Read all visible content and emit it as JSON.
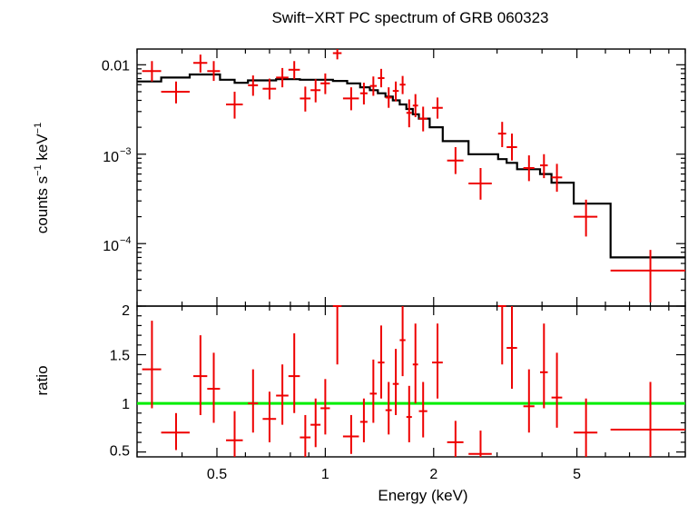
{
  "title": "Swift−XRT PC spectrum of GRB 060323",
  "colors": {
    "data": "#ee0000",
    "model": "#000000",
    "unity": "#00ee00",
    "axes": "#000000"
  },
  "chart_data": [
    {
      "type": "scatter",
      "panel": "spectrum",
      "title": "Swift−XRT PC spectrum of GRB 060323",
      "ylabel_parts": {
        "base": "counts s",
        "exp1": "−1",
        "mid": " keV",
        "exp2": "−1"
      },
      "yscale": "log",
      "xscale": "log",
      "xlim": [
        0.3,
        10
      ],
      "ylim": [
        2e-05,
        0.015
      ],
      "y_ticks": [
        {
          "value": 0.01,
          "label": "0.01"
        },
        {
          "value": 0.001,
          "base": "10",
          "exp": "−3"
        },
        {
          "value": 0.0001,
          "base": "10",
          "exp": "−4"
        }
      ],
      "series": [
        {
          "type": "errorbars",
          "points": [
            {
              "x": 0.33,
              "xlo": 0.31,
              "xhi": 0.35,
              "y": 0.0085,
              "ylo": 0.0065,
              "yhi": 0.011
            },
            {
              "x": 0.385,
              "xlo": 0.35,
              "xhi": 0.42,
              "y": 0.005,
              "ylo": 0.0037,
              "yhi": 0.0065
            },
            {
              "x": 0.45,
              "xlo": 0.43,
              "xhi": 0.47,
              "y": 0.0105,
              "ylo": 0.0082,
              "yhi": 0.013
            },
            {
              "x": 0.49,
              "xlo": 0.47,
              "xhi": 0.51,
              "y": 0.0085,
              "ylo": 0.0066,
              "yhi": 0.011
            },
            {
              "x": 0.56,
              "xlo": 0.53,
              "xhi": 0.59,
              "y": 0.0036,
              "ylo": 0.0025,
              "yhi": 0.005
            },
            {
              "x": 0.63,
              "xlo": 0.61,
              "xhi": 0.65,
              "y": 0.0059,
              "ylo": 0.0045,
              "yhi": 0.0076
            },
            {
              "x": 0.7,
              "xlo": 0.67,
              "xhi": 0.73,
              "y": 0.0054,
              "ylo": 0.0041,
              "yhi": 0.007
            },
            {
              "x": 0.76,
              "xlo": 0.73,
              "xhi": 0.79,
              "y": 0.0072,
              "ylo": 0.0056,
              "yhi": 0.0092
            },
            {
              "x": 0.82,
              "xlo": 0.79,
              "xhi": 0.85,
              "y": 0.0088,
              "ylo": 0.0069,
              "yhi": 0.011
            },
            {
              "x": 0.88,
              "xlo": 0.85,
              "xhi": 0.91,
              "y": 0.0042,
              "ylo": 0.003,
              "yhi": 0.0057
            },
            {
              "x": 0.94,
              "xlo": 0.91,
              "xhi": 0.97,
              "y": 0.0052,
              "ylo": 0.0038,
              "yhi": 0.0069
            },
            {
              "x": 1.0,
              "xlo": 0.97,
              "xhi": 1.03,
              "y": 0.0062,
              "ylo": 0.0047,
              "yhi": 0.008
            },
            {
              "x": 1.08,
              "xlo": 1.05,
              "xhi": 1.11,
              "y": 0.0135,
              "ylo": 0.0115,
              "yhi": 0.016
            },
            {
              "x": 1.18,
              "xlo": 1.12,
              "xhi": 1.24,
              "y": 0.0042,
              "ylo": 0.0031,
              "yhi": 0.0056
            },
            {
              "x": 1.28,
              "xlo": 1.25,
              "xhi": 1.31,
              "y": 0.0048,
              "ylo": 0.0036,
              "yhi": 0.0063
            },
            {
              "x": 1.36,
              "xlo": 1.33,
              "xhi": 1.39,
              "y": 0.0058,
              "ylo": 0.0045,
              "yhi": 0.0074
            },
            {
              "x": 1.43,
              "xlo": 1.4,
              "xhi": 1.46,
              "y": 0.0071,
              "ylo": 0.0056,
              "yhi": 0.009
            },
            {
              "x": 1.5,
              "xlo": 1.47,
              "xhi": 1.53,
              "y": 0.0043,
              "ylo": 0.0033,
              "yhi": 0.0056
            },
            {
              "x": 1.57,
              "xlo": 1.54,
              "xhi": 1.6,
              "y": 0.0051,
              "ylo": 0.0039,
              "yhi": 0.0065
            },
            {
              "x": 1.64,
              "xlo": 1.61,
              "xhi": 1.67,
              "y": 0.006,
              "ylo": 0.0047,
              "yhi": 0.0075
            },
            {
              "x": 1.71,
              "xlo": 1.68,
              "xhi": 1.74,
              "y": 0.0029,
              "ylo": 0.002,
              "yhi": 0.0041
            },
            {
              "x": 1.78,
              "xlo": 1.75,
              "xhi": 1.81,
              "y": 0.0035,
              "ylo": 0.0026,
              "yhi": 0.0047
            },
            {
              "x": 1.87,
              "xlo": 1.82,
              "xhi": 1.92,
              "y": 0.0025,
              "ylo": 0.0018,
              "yhi": 0.0034
            },
            {
              "x": 2.05,
              "xlo": 1.98,
              "xhi": 2.12,
              "y": 0.0033,
              "ylo": 0.0025,
              "yhi": 0.0043
            },
            {
              "x": 2.3,
              "xlo": 2.18,
              "xhi": 2.42,
              "y": 0.00085,
              "ylo": 0.0006,
              "yhi": 0.0012
            },
            {
              "x": 2.7,
              "xlo": 2.5,
              "xhi": 2.9,
              "y": 0.00047,
              "ylo": 0.00031,
              "yhi": 0.0007
            },
            {
              "x": 3.1,
              "xlo": 3.02,
              "xhi": 3.18,
              "y": 0.0017,
              "ylo": 0.0012,
              "yhi": 0.0023
            },
            {
              "x": 3.3,
              "xlo": 3.19,
              "xhi": 3.41,
              "y": 0.0012,
              "ylo": 0.00085,
              "yhi": 0.0017
            },
            {
              "x": 3.68,
              "xlo": 3.55,
              "xhi": 3.81,
              "y": 0.0007,
              "ylo": 0.0005,
              "yhi": 0.00097
            },
            {
              "x": 4.05,
              "xlo": 3.95,
              "xhi": 4.15,
              "y": 0.00075,
              "ylo": 0.00054,
              "yhi": 0.001
            },
            {
              "x": 4.4,
              "xlo": 4.25,
              "xhi": 4.55,
              "y": 0.00055,
              "ylo": 0.00038,
              "yhi": 0.00078
            },
            {
              "x": 5.3,
              "xlo": 4.9,
              "xhi": 5.7,
              "y": 0.0002,
              "ylo": 0.00012,
              "yhi": 0.00031
            },
            {
              "x": 8.0,
              "xlo": 6.2,
              "xhi": 10.0,
              "y": 5e-05,
              "ylo": 2.2e-05,
              "yhi": 8.5e-05
            }
          ]
        },
        {
          "type": "model-step",
          "steps": [
            {
              "xlo": 0.3,
              "xhi": 0.35,
              "y": 0.0065
            },
            {
              "xlo": 0.35,
              "xhi": 0.42,
              "y": 0.0072
            },
            {
              "xlo": 0.42,
              "xhi": 0.51,
              "y": 0.0078
            },
            {
              "xlo": 0.51,
              "xhi": 0.56,
              "y": 0.0068
            },
            {
              "xlo": 0.56,
              "xhi": 0.61,
              "y": 0.0063
            },
            {
              "xlo": 0.61,
              "xhi": 0.73,
              "y": 0.0067
            },
            {
              "xlo": 0.73,
              "xhi": 0.85,
              "y": 0.0069
            },
            {
              "xlo": 0.85,
              "xhi": 1.05,
              "y": 0.0068
            },
            {
              "xlo": 1.05,
              "xhi": 1.15,
              "y": 0.0066
            },
            {
              "xlo": 1.15,
              "xhi": 1.25,
              "y": 0.0062
            },
            {
              "xlo": 1.25,
              "xhi": 1.33,
              "y": 0.0056
            },
            {
              "xlo": 1.33,
              "xhi": 1.4,
              "y": 0.0052
            },
            {
              "xlo": 1.4,
              "xhi": 1.47,
              "y": 0.0048
            },
            {
              "xlo": 1.47,
              "xhi": 1.54,
              "y": 0.0044
            },
            {
              "xlo": 1.54,
              "xhi": 1.61,
              "y": 0.004
            },
            {
              "xlo": 1.61,
              "xhi": 1.68,
              "y": 0.0036
            },
            {
              "xlo": 1.68,
              "xhi": 1.75,
              "y": 0.0032
            },
            {
              "xlo": 1.75,
              "xhi": 1.82,
              "y": 0.0028
            },
            {
              "xlo": 1.82,
              "xhi": 1.95,
              "y": 0.0025
            },
            {
              "xlo": 1.95,
              "xhi": 2.12,
              "y": 0.002
            },
            {
              "xlo": 2.12,
              "xhi": 2.5,
              "y": 0.0014
            },
            {
              "xlo": 2.5,
              "xhi": 3.02,
              "y": 0.001
            },
            {
              "xlo": 3.02,
              "xhi": 3.19,
              "y": 0.00088
            },
            {
              "xlo": 3.19,
              "xhi": 3.41,
              "y": 0.0008
            },
            {
              "xlo": 3.41,
              "xhi": 3.95,
              "y": 0.00068
            },
            {
              "xlo": 3.95,
              "xhi": 4.25,
              "y": 0.0006
            },
            {
              "xlo": 4.25,
              "xhi": 4.9,
              "y": 0.00048
            },
            {
              "xlo": 4.9,
              "xhi": 6.2,
              "y": 0.00028
            },
            {
              "xlo": 6.2,
              "xhi": 10.0,
              "y": 7e-05
            }
          ]
        }
      ]
    },
    {
      "type": "scatter",
      "panel": "ratio",
      "xlabel": "Energy (keV)",
      "ylabel": "ratio",
      "xscale": "log",
      "xlim": [
        0.3,
        10
      ],
      "ylim": [
        0.45,
        2
      ],
      "x_ticks": [
        {
          "value": 0.5,
          "label": "0.5"
        },
        {
          "value": 1,
          "label": "1"
        },
        {
          "value": 2,
          "label": "2"
        },
        {
          "value": 5,
          "label": "5"
        }
      ],
      "y_ticks": [
        {
          "value": 0.5,
          "label": "0.5"
        },
        {
          "value": 1,
          "label": "1"
        },
        {
          "value": 1.5,
          "label": "1.5"
        },
        {
          "value": 2,
          "label": "2"
        }
      ],
      "reference_line": 1,
      "series": [
        {
          "type": "errorbars",
          "points": [
            {
              "x": 0.33,
              "xlo": 0.31,
              "xhi": 0.35,
              "y": 1.35,
              "ylo": 0.95,
              "yhi": 1.85
            },
            {
              "x": 0.385,
              "xlo": 0.35,
              "xhi": 0.42,
              "y": 0.7,
              "ylo": 0.52,
              "yhi": 0.9
            },
            {
              "x": 0.45,
              "xlo": 0.43,
              "xhi": 0.47,
              "y": 1.28,
              "ylo": 0.88,
              "yhi": 1.7
            },
            {
              "x": 0.49,
              "xlo": 0.47,
              "xhi": 0.51,
              "y": 1.15,
              "ylo": 0.8,
              "yhi": 1.52
            },
            {
              "x": 0.56,
              "xlo": 0.53,
              "xhi": 0.59,
              "y": 0.62,
              "ylo": 0.45,
              "yhi": 0.92
            },
            {
              "x": 0.63,
              "xlo": 0.61,
              "xhi": 0.65,
              "y": 1.0,
              "ylo": 0.7,
              "yhi": 1.35
            },
            {
              "x": 0.7,
              "xlo": 0.67,
              "xhi": 0.73,
              "y": 0.84,
              "ylo": 0.6,
              "yhi": 1.12
            },
            {
              "x": 0.76,
              "xlo": 0.73,
              "xhi": 0.79,
              "y": 1.08,
              "ylo": 0.78,
              "yhi": 1.4
            },
            {
              "x": 0.82,
              "xlo": 0.79,
              "xhi": 0.85,
              "y": 1.28,
              "ylo": 0.9,
              "yhi": 1.72
            },
            {
              "x": 0.88,
              "xlo": 0.85,
              "xhi": 0.91,
              "y": 0.65,
              "ylo": 0.45,
              "yhi": 0.88
            },
            {
              "x": 0.94,
              "xlo": 0.91,
              "xhi": 0.97,
              "y": 0.78,
              "ylo": 0.55,
              "yhi": 1.05
            },
            {
              "x": 1.0,
              "xlo": 0.97,
              "xhi": 1.03,
              "y": 0.95,
              "ylo": 0.68,
              "yhi": 1.25
            },
            {
              "x": 1.08,
              "xlo": 1.05,
              "xhi": 1.11,
              "y": 2.0,
              "ylo": 1.4,
              "yhi": 2.0
            },
            {
              "x": 1.18,
              "xlo": 1.12,
              "xhi": 1.24,
              "y": 0.66,
              "ylo": 0.48,
              "yhi": 0.88
            },
            {
              "x": 1.28,
              "xlo": 1.25,
              "xhi": 1.31,
              "y": 0.81,
              "ylo": 0.6,
              "yhi": 1.05
            },
            {
              "x": 1.36,
              "xlo": 1.33,
              "xhi": 1.39,
              "y": 1.1,
              "ylo": 0.8,
              "yhi": 1.45
            },
            {
              "x": 1.43,
              "xlo": 1.4,
              "xhi": 1.46,
              "y": 1.42,
              "ylo": 1.05,
              "yhi": 1.8
            },
            {
              "x": 1.5,
              "xlo": 1.47,
              "xhi": 1.53,
              "y": 0.93,
              "ylo": 0.68,
              "yhi": 1.22
            },
            {
              "x": 1.57,
              "xlo": 1.54,
              "xhi": 1.6,
              "y": 1.2,
              "ylo": 0.88,
              "yhi": 1.56
            },
            {
              "x": 1.64,
              "xlo": 1.61,
              "xhi": 1.67,
              "y": 1.65,
              "ylo": 1.28,
              "yhi": 2.0
            },
            {
              "x": 1.71,
              "xlo": 1.68,
              "xhi": 1.74,
              "y": 0.86,
              "ylo": 0.6,
              "yhi": 1.18
            },
            {
              "x": 1.78,
              "xlo": 1.75,
              "xhi": 1.81,
              "y": 1.4,
              "ylo": 1.0,
              "yhi": 1.82
            },
            {
              "x": 1.87,
              "xlo": 1.82,
              "xhi": 1.92,
              "y": 0.92,
              "ylo": 0.65,
              "yhi": 1.22
            },
            {
              "x": 2.05,
              "xlo": 1.98,
              "xhi": 2.12,
              "y": 1.42,
              "ylo": 1.05,
              "yhi": 1.82
            },
            {
              "x": 2.3,
              "xlo": 2.18,
              "xhi": 2.42,
              "y": 0.6,
              "ylo": 0.42,
              "yhi": 0.82
            },
            {
              "x": 2.7,
              "xlo": 2.5,
              "xhi": 2.9,
              "y": 0.48,
              "ylo": 0.42,
              "yhi": 0.72
            },
            {
              "x": 3.1,
              "xlo": 3.02,
              "xhi": 3.18,
              "y": 2.0,
              "ylo": 1.4,
              "yhi": 2.0
            },
            {
              "x": 3.3,
              "xlo": 3.19,
              "xhi": 3.41,
              "y": 1.57,
              "ylo": 1.15,
              "yhi": 2.0
            },
            {
              "x": 3.68,
              "xlo": 3.55,
              "xhi": 3.81,
              "y": 0.97,
              "ylo": 0.7,
              "yhi": 1.35
            },
            {
              "x": 4.05,
              "xlo": 3.95,
              "xhi": 4.15,
              "y": 1.32,
              "ylo": 0.95,
              "yhi": 1.82
            },
            {
              "x": 4.4,
              "xlo": 4.25,
              "xhi": 4.55,
              "y": 1.06,
              "ylo": 0.75,
              "yhi": 1.52
            },
            {
              "x": 5.3,
              "xlo": 4.9,
              "xhi": 5.7,
              "y": 0.7,
              "ylo": 0.45,
              "yhi": 1.05
            },
            {
              "x": 8.0,
              "xlo": 6.2,
              "xhi": 10.0,
              "y": 0.73,
              "ylo": 0.45,
              "yhi": 1.22
            }
          ]
        }
      ]
    }
  ]
}
